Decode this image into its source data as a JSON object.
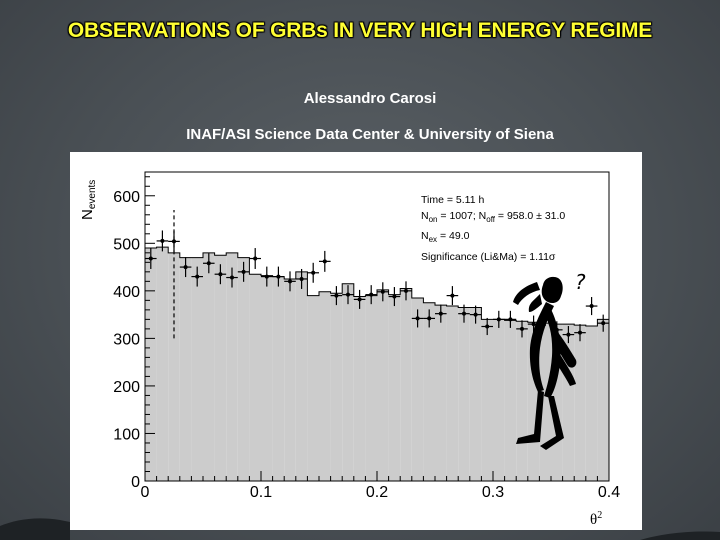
{
  "slide": {
    "title": "OBSERVATIONS OF GRBs IN VERY HIGH ENERGY REGIME",
    "author": "Alessandro Carosi",
    "affiliation": "INAF/ASI Science Data Center & University of Siena"
  },
  "chart_data": {
    "type": "bar",
    "title": "",
    "xlabel": "θ²",
    "ylabel": "N_events",
    "xlim": [
      0,
      0.4
    ],
    "ylim": [
      0,
      650
    ],
    "x_ticks": [
      "0",
      "0.1",
      "0.2",
      "0.3",
      "0.4"
    ],
    "y_ticks": [
      "0",
      "100",
      "200",
      "300",
      "400",
      "500",
      "600"
    ],
    "bin_width": 0.01,
    "off_histogram": [
      490,
      492,
      480,
      470,
      470,
      480,
      475,
      480,
      470,
      435,
      432,
      430,
      425,
      440,
      390,
      398,
      395,
      415,
      388,
      390,
      402,
      392,
      405,
      385,
      375,
      370,
      368,
      365,
      365,
      340,
      340,
      338,
      336,
      334,
      332,
      330,
      330,
      328,
      326,
      340
    ],
    "on_points": [
      468,
      505,
      504,
      450,
      430,
      458,
      435,
      428,
      440,
      468,
      430,
      430,
      420,
      425,
      438,
      462,
      390,
      392,
      382,
      392,
      398,
      388,
      400,
      342,
      342,
      352,
      390,
      352,
      350,
      325,
      340,
      340,
      320,
      330,
      345,
      318,
      308,
      312,
      368,
      332
    ],
    "on_errors": [
      22,
      22,
      22,
      21,
      21,
      21,
      21,
      21,
      21,
      22,
      21,
      21,
      21,
      21,
      21,
      22,
      20,
      20,
      20,
      20,
      20,
      20,
      20,
      19,
      19,
      19,
      20,
      19,
      19,
      18,
      18,
      18,
      18,
      18,
      19,
      18,
      18,
      18,
      19,
      18
    ],
    "cut_line": {
      "x": 0.025,
      "y_from": 300,
      "y_to": 570
    },
    "annotations": {
      "time": "Time = 5.11 h",
      "non_pre": "N",
      "non_sub": "on",
      "non_mid": " = 1007; N",
      "noff_sub": "off",
      "noff_post": " = 958.0 ± 31.0",
      "nex_pre": "N",
      "nex_sub": "ex",
      "nex_post": " = 49.0",
      "significance": "Significance (Li&Ma) = 1.11σ"
    },
    "ylabel_main": "N",
    "ylabel_sub": "events",
    "xlabel_main": "θ",
    "xlabel_sup": "2",
    "cartoon_mark": "?",
    "colors": {
      "off_fill": "#cccccc",
      "axis": "#000000",
      "points": "#000000"
    }
  }
}
